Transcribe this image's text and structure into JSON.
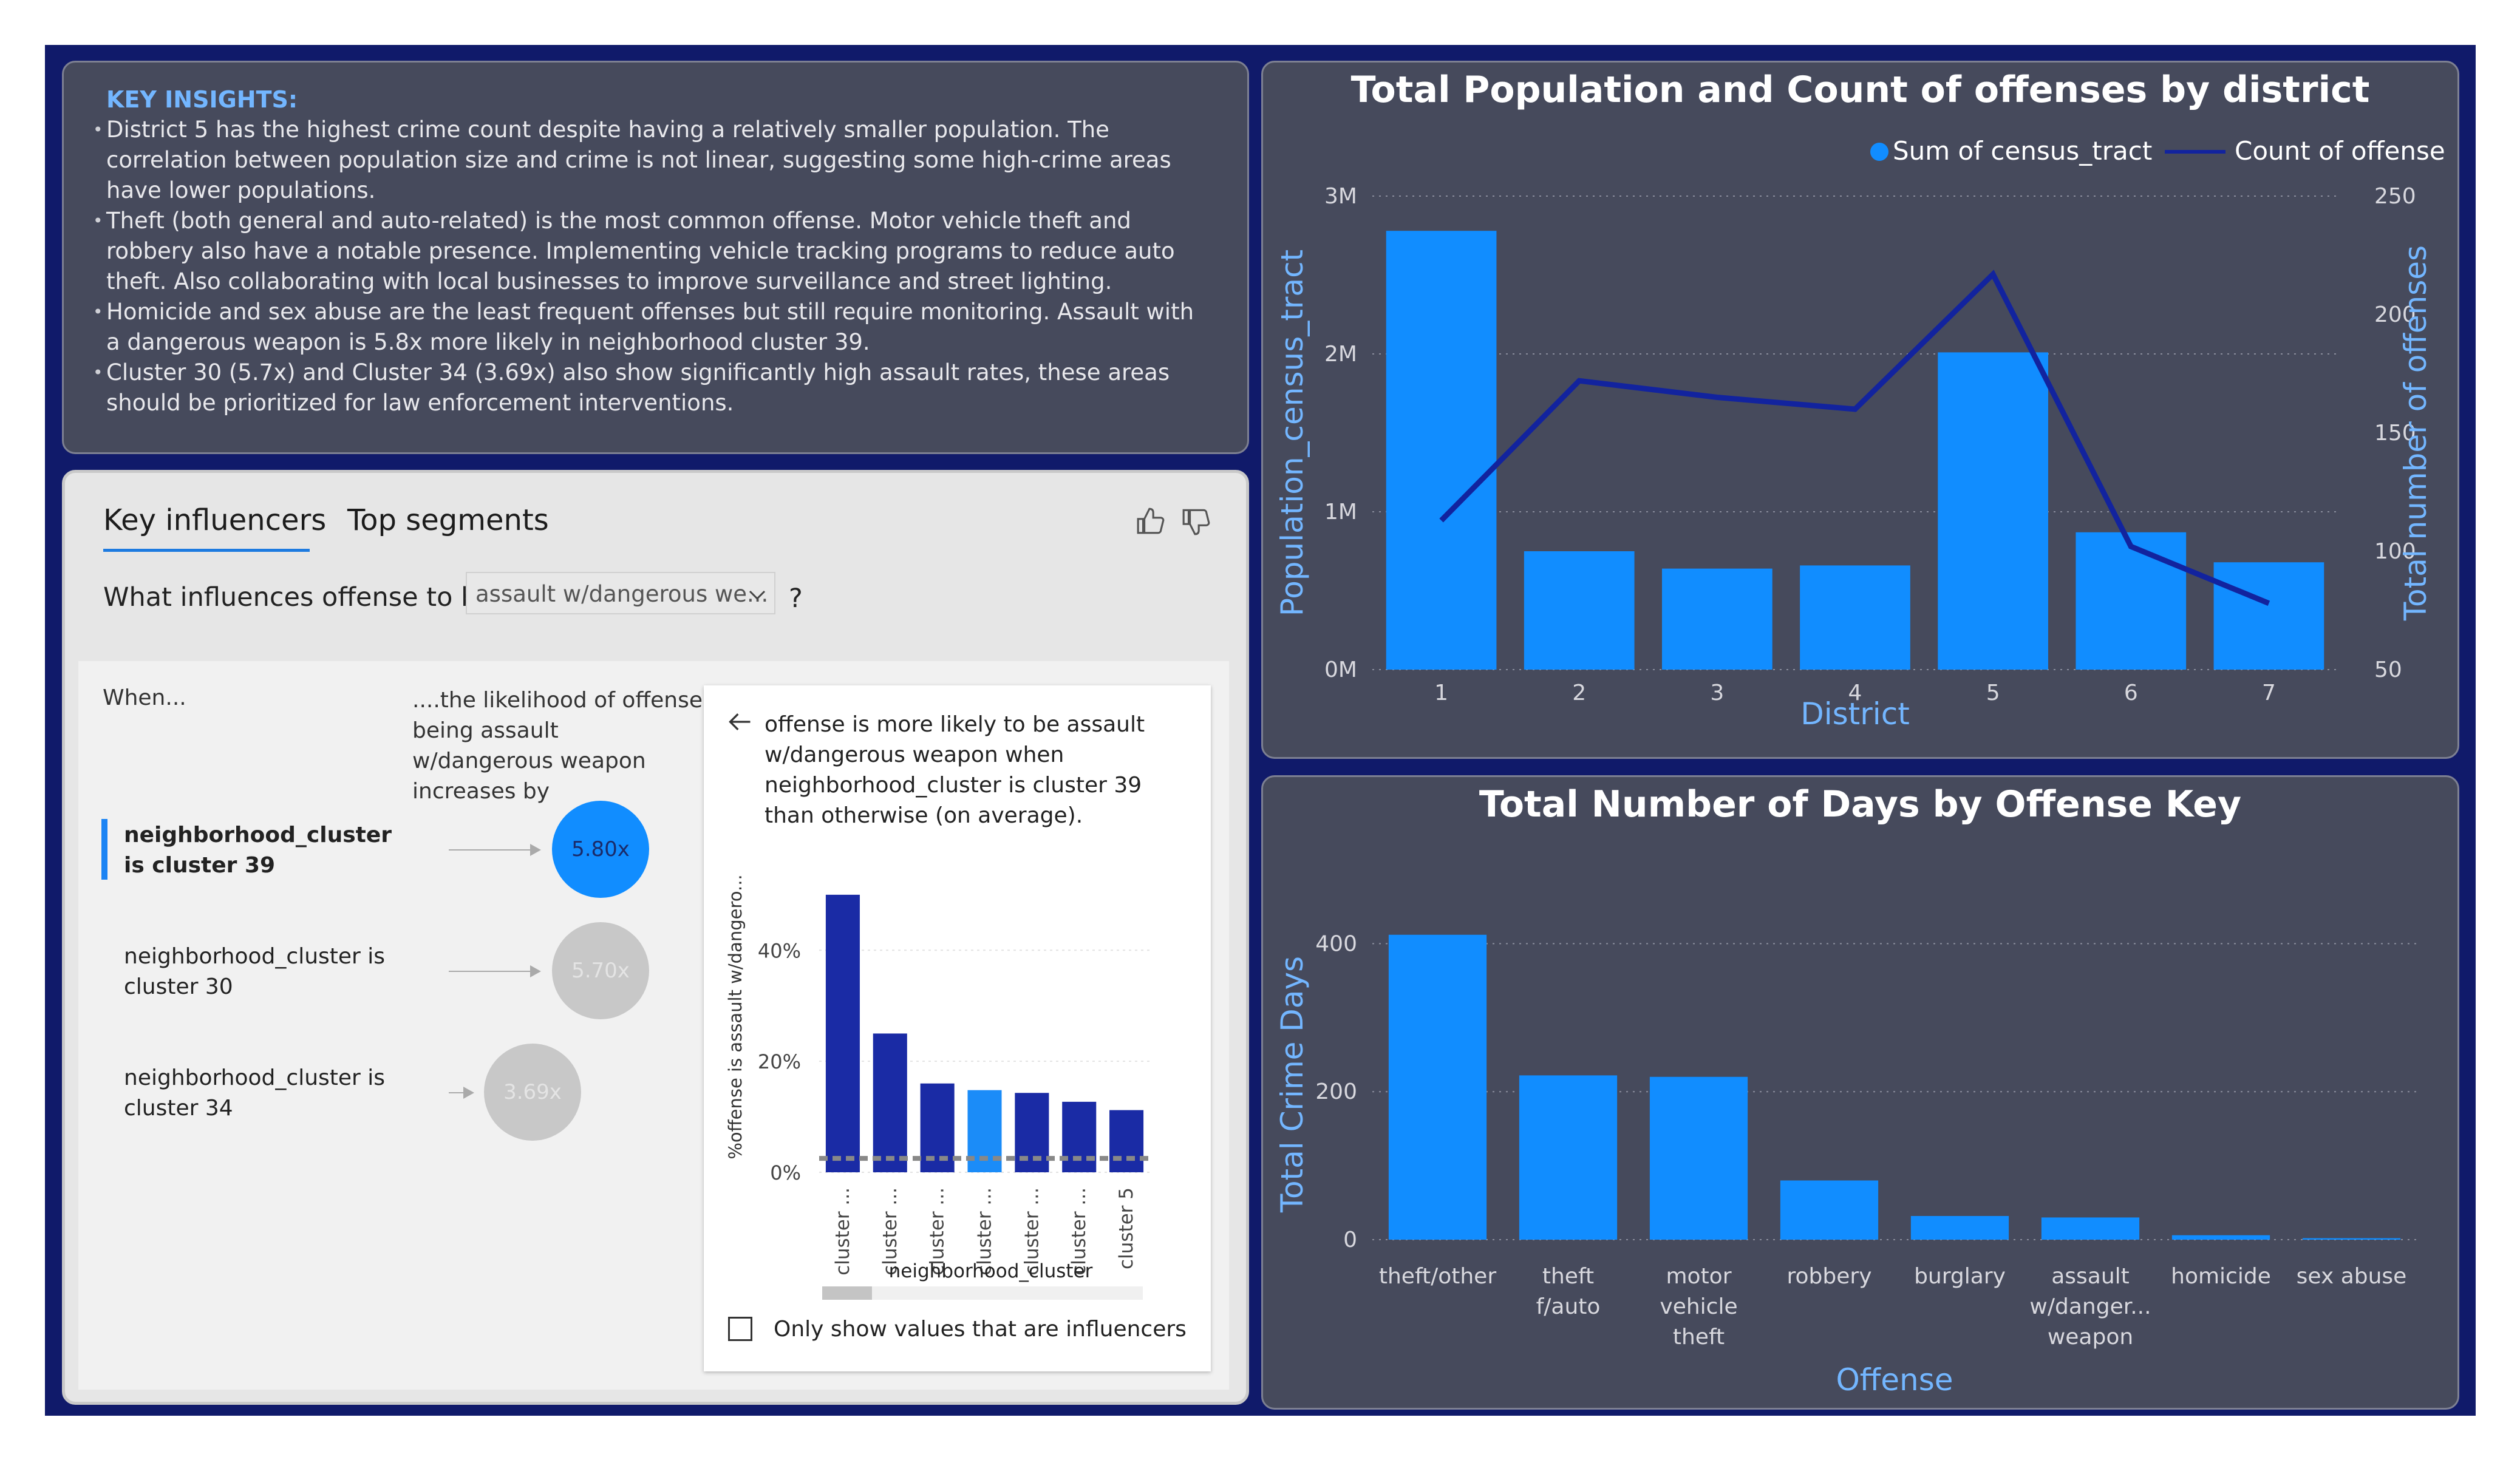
{
  "insights": {
    "title": "KEY INSIGHTS:",
    "lines": [
      "District 5 has the highest crime count despite having a relatively smaller population. The",
      "correlation between population size and crime is not linear, suggesting some high-crime areas",
      "have lower populations.",
      "Theft (both general and auto-related) is the most common offense. Motor vehicle theft and",
      "robbery also have a notable presence. Implementing vehicle tracking programs to reduce auto",
      "theft. Also collaborating with local businesses to improve surveillance and street lighting.",
      "Homicide and sex abuse are the least frequent offenses but still require monitoring. Assault with",
      "a dangerous weapon is 5.8x more likely in neighborhood cluster 39.",
      "Cluster 30 (5.7x) and Cluster 34 (3.69x) also show significantly high assault rates, these areas",
      "should be prioritized for law enforcement interventions."
    ]
  },
  "key_influencers": {
    "tab_active": "Key influencers",
    "tab_other": "Top segments",
    "question": "What influences offense to be",
    "dropdown_value": "assault w/dangerous we...",
    "question_mark": "?",
    "when_label": "When...",
    "likelihood_label": "....the likelihood of offense being assault w/dangerous weapon increases by",
    "influencers": [
      {
        "label": "neighborhood_cluster is cluster 39",
        "value": "5.80x",
        "selected": true
      },
      {
        "label": "neighborhood_cluster is cluster 30",
        "value": "5.70x",
        "selected": false
      },
      {
        "label": "neighborhood_cluster is cluster 34",
        "value": "3.69x",
        "selected": false
      }
    ],
    "detail_text": "offense is more likely to be assault w/dangerous weapon when neighborhood_cluster is cluster 39 than otherwise (on average).",
    "detail_chart": {
      "ylabel": "%offense is assault w/dangero...",
      "xlabel": "neighborhood_cluster",
      "yticks": [
        "0%",
        "20%",
        "40%"
      ],
      "categories": [
        "cluster ...",
        "cluster ...",
        "cluster ...",
        "cluster ...",
        "cluster ...",
        "cluster ...",
        "cluster 5"
      ],
      "values": [
        50,
        25,
        16,
        14.8,
        14.3,
        12.7,
        11.2
      ],
      "highlight_index": 3,
      "average": 2.5,
      "colors": {
        "bar": "#1a2ba5",
        "highlight": "#1b8cf8",
        "average": "#888888"
      }
    },
    "only_influencers_label": "Only show values that are influencers"
  },
  "chart_data": [
    {
      "type": "bar",
      "title": "Total Population and Count of offenses by district",
      "xlabel": "District",
      "ylabel": "Population_census_tract",
      "y2label": "Total number of offenses",
      "categories": [
        "1",
        "2",
        "3",
        "4",
        "5",
        "6",
        "7"
      ],
      "series": [
        {
          "name": "Sum of census_tract",
          "kind": "bar",
          "axis": "left",
          "values": [
            2780000,
            750000,
            640000,
            660000,
            2010000,
            870000,
            680000
          ],
          "color": "#118dff"
        },
        {
          "name": "Count of offense",
          "kind": "line",
          "axis": "right",
          "values": [
            113,
            172,
            165,
            160,
            217,
            102,
            78
          ],
          "color": "#12239e"
        }
      ],
      "ylim": [
        0,
        3000000
      ],
      "y_ticks": [
        "0M",
        "1M",
        "2M",
        "3M"
      ],
      "y2lim": [
        50,
        250
      ],
      "y2_ticks": [
        "50",
        "100",
        "150",
        "200",
        "250"
      ],
      "legend": "top-right",
      "grid": true
    },
    {
      "type": "bar",
      "title": "Total Number of Days by Offense Key",
      "xlabel": "Offense",
      "ylabel": "Total Crime Days",
      "categories": [
        [
          "theft/other"
        ],
        [
          "theft",
          "f/auto"
        ],
        [
          "motor",
          "vehicle",
          "theft"
        ],
        [
          "robbery"
        ],
        [
          "burglary"
        ],
        [
          "assault",
          "w/danger...",
          "weapon"
        ],
        [
          "homicide"
        ],
        [
          "sex abuse"
        ]
      ],
      "values": [
        412,
        222,
        220,
        80,
        32,
        30,
        6,
        2
      ],
      "ylim": [
        0,
        420
      ],
      "y_ticks": [
        "0",
        "200",
        "400"
      ],
      "color": "#118dff",
      "grid": true
    }
  ]
}
